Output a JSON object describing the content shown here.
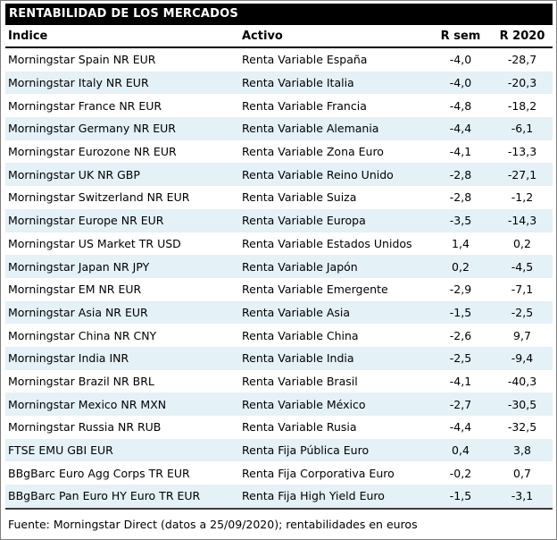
{
  "title": "RENTABILIDAD DE LOS MERCADOS",
  "footer": "Fuente: Morningstar Direct (datos a 25/09/2020); rentabilidades en euros",
  "colors": {
    "title_bg": "#000000",
    "title_fg": "#ffffff",
    "row_alt": "#e4f1f7",
    "border": "#000000"
  },
  "table": {
    "columns": [
      "Índice",
      "Activo",
      "R sem",
      "R 2020"
    ],
    "rows": [
      {
        "indice": "Morningstar Spain NR EUR",
        "activo": "Renta Variable España",
        "r_sem": "-4,0",
        "r_2020": "-28,7"
      },
      {
        "indice": "Morningstar Italy NR EUR",
        "activo": "Renta Variable Italia",
        "r_sem": "-4,0",
        "r_2020": "-20,3"
      },
      {
        "indice": "Morningstar France NR EUR",
        "activo": "Renta Variable Francia",
        "r_sem": "-4,8",
        "r_2020": "-18,2"
      },
      {
        "indice": "Morningstar Germany NR EUR",
        "activo": "Renta Variable Alemania",
        "r_sem": "-4,4",
        "r_2020": "-6,1"
      },
      {
        "indice": "Morningstar Eurozone NR EUR",
        "activo": "Renta Variable Zona Euro",
        "r_sem": "-4,1",
        "r_2020": "-13,3"
      },
      {
        "indice": "Morningstar UK NR GBP",
        "activo": "Renta Variable Reino Unido",
        "r_sem": "-2,8",
        "r_2020": "-27,1"
      },
      {
        "indice": "Morningstar Switzerland NR EUR",
        "activo": "Renta Variable Suiza",
        "r_sem": "-2,8",
        "r_2020": "-1,2"
      },
      {
        "indice": "Morningstar Europe NR EUR",
        "activo": "Renta Variable Europa",
        "r_sem": "-3,5",
        "r_2020": "-14,3"
      },
      {
        "indice": "Morningstar US Market TR USD",
        "activo": "Renta Variable Estados Unidos",
        "r_sem": "1,4",
        "r_2020": "0,2"
      },
      {
        "indice": "Morningstar Japan NR JPY",
        "activo": "Renta Variable Japón",
        "r_sem": "0,2",
        "r_2020": "-4,5"
      },
      {
        "indice": "Morningstar EM NR EUR",
        "activo": "Renta Variable Emergente",
        "r_sem": "-2,9",
        "r_2020": "-7,1"
      },
      {
        "indice": "Morningstar Asia NR EUR",
        "activo": "Renta Variable Asia",
        "r_sem": "-1,5",
        "r_2020": "-2,5"
      },
      {
        "indice": "Morningstar China NR CNY",
        "activo": "Renta Variable China",
        "r_sem": "-2,6",
        "r_2020": "9,7"
      },
      {
        "indice": "Morningstar India INR",
        "activo": "Renta Variable India",
        "r_sem": "-2,5",
        "r_2020": "-9,4"
      },
      {
        "indice": "Morningstar Brazil NR BRL",
        "activo": "Renta Variable Brasil",
        "r_sem": "-4,1",
        "r_2020": "-40,3"
      },
      {
        "indice": "Morningstar Mexico NR MXN",
        "activo": "Renta Variable México",
        "r_sem": "-2,7",
        "r_2020": "-30,5"
      },
      {
        "indice": "Morningstar Russia NR RUB",
        "activo": "Renta Variable Rusia",
        "r_sem": "-4,4",
        "r_2020": "-32,5"
      },
      {
        "indice": "FTSE EMU GBI EUR",
        "activo": "Renta Fija Pública Euro",
        "r_sem": "0,4",
        "r_2020": "3,8"
      },
      {
        "indice": "BBgBarc Euro Agg Corps TR EUR",
        "activo": "Renta Fija Corporativa Euro",
        "r_sem": "-0,2",
        "r_2020": "0,7"
      },
      {
        "indice": "BBgBarc Pan Euro HY Euro TR EUR",
        "activo": "Renta Fija High Yield Euro",
        "r_sem": "-1,5",
        "r_2020": "-3,1"
      }
    ]
  },
  "chart_data": {
    "type": "table",
    "title": "RENTABILIDAD DE LOS MERCADOS",
    "columns": [
      "Índice",
      "Activo",
      "R sem",
      "R 2020"
    ],
    "note": "Fuente: Morningstar Direct (datos a 25/09/2020); rentabilidades en euros"
  }
}
